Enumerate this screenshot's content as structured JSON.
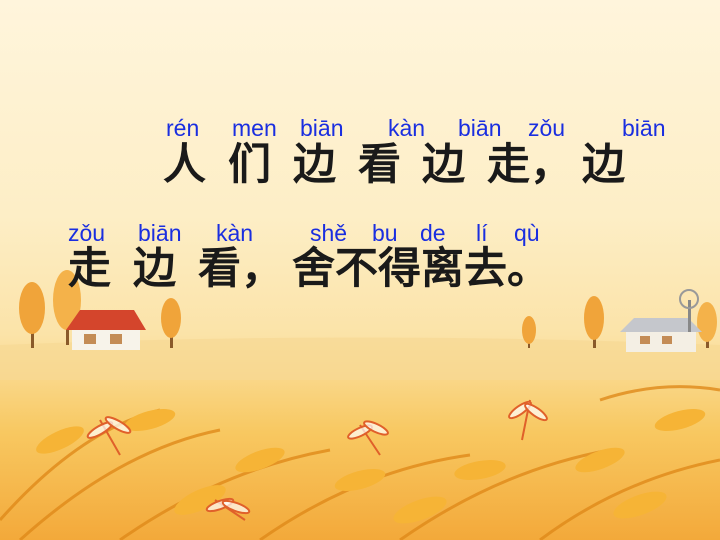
{
  "line1": {
    "pinyin": [
      "rén",
      "men",
      "biān",
      "kàn",
      "biān",
      "zǒu",
      "biān"
    ],
    "hanzi": [
      "人",
      "们",
      "边",
      "看",
      "边",
      "走，",
      "边"
    ]
  },
  "line2": {
    "pinyin": [
      "zǒu",
      "biān",
      "kàn",
      "shě",
      "bu",
      "de",
      "lí",
      "qù"
    ],
    "hanzi": [
      "走",
      "边",
      "看，",
      "舍不得离去。"
    ]
  },
  "colors": {
    "pinyin": "#1a2ee0",
    "hanzi": "#1a1a1a",
    "sky": "#fff5dc",
    "field": "#f3a93a"
  },
  "decorations": [
    "house-icon",
    "barn-icon",
    "windmill-icon",
    "tree-icon",
    "dragonfly-icon",
    "wheat-icon"
  ]
}
